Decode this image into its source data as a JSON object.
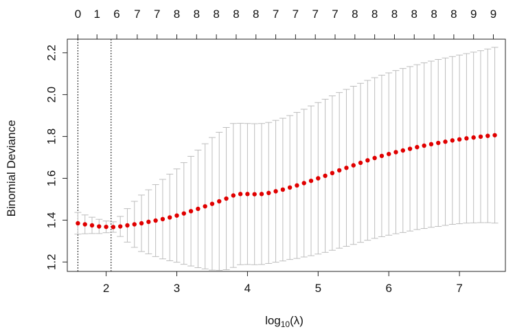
{
  "chart_data": {
    "type": "scatter",
    "title": "",
    "xlabel_prefix": "log",
    "xlabel_sub": "10",
    "xlabel_suffix": "(λ)",
    "ylabel": "Binomial Deviance",
    "xlim": [
      1.45,
      7.65
    ],
    "ylim": [
      1.155,
      2.265
    ],
    "x_ticks": [
      2,
      3,
      4,
      5,
      6,
      7
    ],
    "y_ticks": [
      1.2,
      1.4,
      1.6,
      1.8,
      2.0,
      2.2
    ],
    "y_tick_labels": [
      "1.2",
      "1.4",
      "1.6",
      "1.8",
      "2.0",
      "2.2"
    ],
    "top_axis": {
      "x": [
        1.6,
        1.87,
        2.15,
        2.44,
        2.72,
        3.0,
        3.28,
        3.56,
        3.84,
        4.12,
        4.4,
        4.68,
        4.96,
        5.24,
        5.52,
        5.8,
        6.08,
        6.36,
        6.64,
        6.92,
        7.2,
        7.48
      ],
      "labels": [
        "0",
        "1",
        "6",
        "7",
        "7",
        "8",
        "8",
        "8",
        "8",
        "8",
        "7",
        "7",
        "7",
        "7",
        "8",
        "8",
        "8",
        "8",
        "8",
        "8",
        "9",
        "9"
      ]
    },
    "vlines": [
      1.6,
      2.07
    ],
    "series": [
      {
        "color": "#e00000",
        "error_color": "#bdbdbd",
        "x": [
          1.6,
          1.7,
          1.8,
          1.9,
          2.0,
          2.1,
          2.2,
          2.3,
          2.4,
          2.5,
          2.6,
          2.7,
          2.8,
          2.9,
          3.0,
          3.1,
          3.2,
          3.3,
          3.4,
          3.5,
          3.6,
          3.7,
          3.8,
          3.9,
          4.0,
          4.1,
          4.2,
          4.3,
          4.4,
          4.5,
          4.6,
          4.7,
          4.8,
          4.9,
          5.0,
          5.1,
          5.2,
          5.3,
          5.4,
          5.5,
          5.6,
          5.7,
          5.8,
          5.9,
          6.0,
          6.1,
          6.2,
          6.3,
          6.4,
          6.5,
          6.6,
          6.7,
          6.8,
          6.9,
          7.0,
          7.1,
          7.2,
          7.3,
          7.4,
          7.5
        ],
        "y": [
          1.385,
          1.38,
          1.375,
          1.37,
          1.368,
          1.367,
          1.37,
          1.375,
          1.38,
          1.385,
          1.392,
          1.398,
          1.405,
          1.413,
          1.422,
          1.432,
          1.443,
          1.454,
          1.466,
          1.478,
          1.49,
          1.503,
          1.518,
          1.525,
          1.525,
          1.524,
          1.525,
          1.53,
          1.538,
          1.546,
          1.556,
          1.566,
          1.577,
          1.588,
          1.6,
          1.612,
          1.625,
          1.638,
          1.65,
          1.662,
          1.674,
          1.686,
          1.697,
          1.707,
          1.716,
          1.725,
          1.733,
          1.741,
          1.749,
          1.756,
          1.763,
          1.769,
          1.775,
          1.781,
          1.786,
          1.791,
          1.795,
          1.799,
          1.803,
          1.806
        ],
        "upper": [
          1.437,
          1.425,
          1.414,
          1.404,
          1.396,
          1.392,
          1.418,
          1.455,
          1.49,
          1.52,
          1.545,
          1.57,
          1.595,
          1.62,
          1.645,
          1.675,
          1.705,
          1.735,
          1.765,
          1.795,
          1.82,
          1.843,
          1.862,
          1.863,
          1.862,
          1.861,
          1.862,
          1.867,
          1.877,
          1.887,
          1.9,
          1.915,
          1.93,
          1.946,
          1.962,
          1.978,
          1.994,
          2.01,
          2.025,
          2.04,
          2.054,
          2.068,
          2.081,
          2.093,
          2.104,
          2.115,
          2.125,
          2.134,
          2.143,
          2.152,
          2.16,
          2.168,
          2.175,
          2.182,
          2.189,
          2.196,
          2.203,
          2.21,
          2.218,
          2.226
        ],
        "lower": [
          1.333,
          1.335,
          1.336,
          1.336,
          1.34,
          1.342,
          1.322,
          1.295,
          1.27,
          1.25,
          1.239,
          1.226,
          1.215,
          1.206,
          1.199,
          1.189,
          1.181,
          1.173,
          1.167,
          1.161,
          1.16,
          1.163,
          1.174,
          1.187,
          1.188,
          1.187,
          1.188,
          1.193,
          1.199,
          1.205,
          1.212,
          1.217,
          1.224,
          1.23,
          1.238,
          1.246,
          1.256,
          1.266,
          1.275,
          1.284,
          1.294,
          1.304,
          1.313,
          1.321,
          1.328,
          1.335,
          1.341,
          1.348,
          1.355,
          1.36,
          1.366,
          1.37,
          1.375,
          1.38,
          1.383,
          1.386,
          1.387,
          1.388,
          1.388,
          1.386
        ]
      }
    ],
    "grid": false,
    "legend": "none"
  }
}
